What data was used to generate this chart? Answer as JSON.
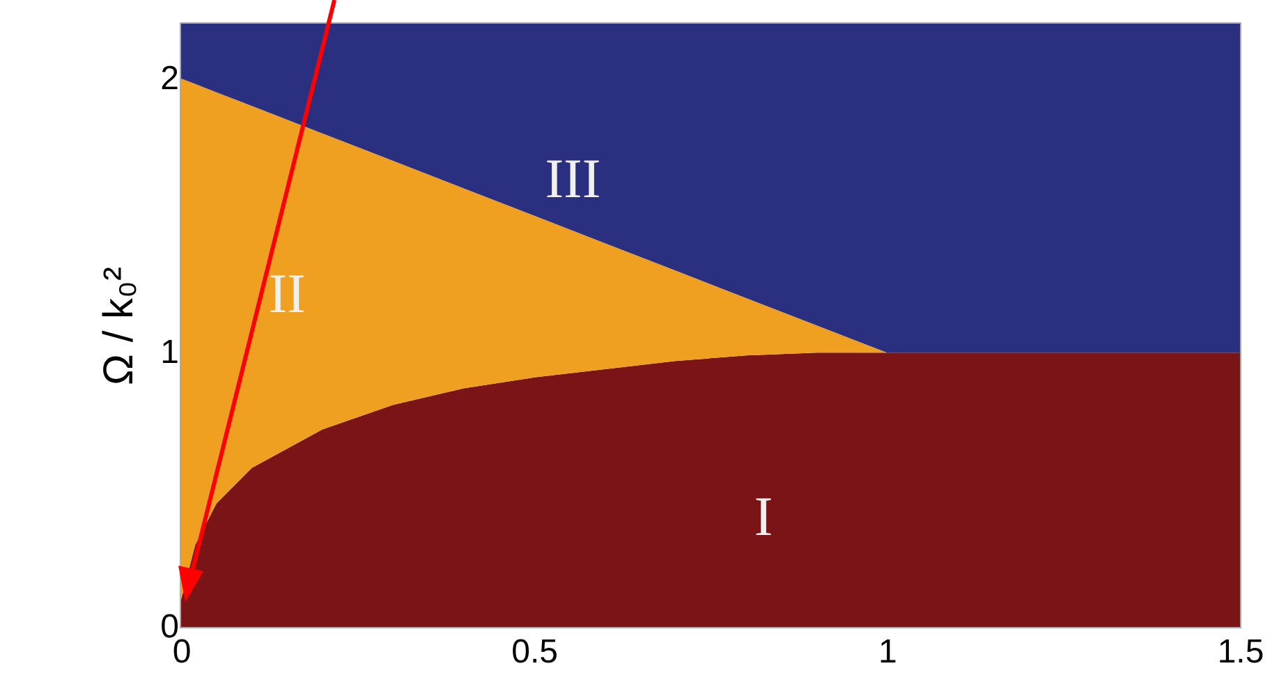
{
  "chart_data": {
    "type": "area",
    "stacked": true,
    "ylabel": "Ω / k₀²",
    "x": [
      0,
      0.02,
      0.05,
      0.1,
      0.2,
      0.3,
      0.4,
      0.5,
      0.6,
      0.7,
      0.8,
      0.9,
      1,
      1.5
    ],
    "series": [
      {
        "color": "#7b1416",
        "values": [
          0.1,
          0.3,
          0.45,
          0.58,
          0.72,
          0.81,
          0.87,
          0.91,
          0.94,
          0.97,
          0.99,
          1.0,
          1.0,
          1.0
        ]
      },
      {
        "color": "#f0a020",
        "values": [
          1.9,
          1.68,
          1.5,
          1.32,
          1.08,
          0.89,
          0.73,
          0.59,
          0.46,
          0.33,
          0.21,
          0.1,
          0,
          0
        ]
      },
      {
        "color": "#2b2f80",
        "values": [
          0.2,
          0.22,
          0.25,
          0.3,
          0.4,
          0.5,
          0.6,
          0.7,
          0.8,
          0.9,
          1.0,
          1.1,
          1.2,
          1.2
        ]
      }
    ],
    "annotations": [
      "I",
      "II",
      "III"
    ],
    "xlim": [
      0,
      1.5
    ],
    "xticks": [
      0,
      0.5,
      1,
      1.5
    ],
    "ylim": [
      0,
      2.2
    ],
    "yticks": [
      0,
      1,
      2
    ],
    "grid": false
  }
}
